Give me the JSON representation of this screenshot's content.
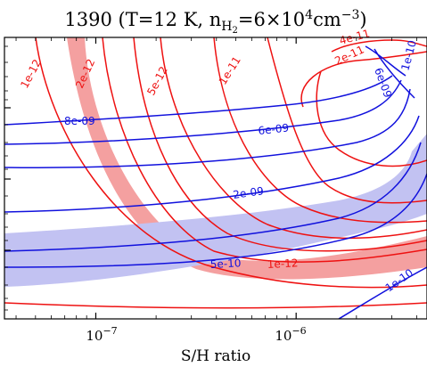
{
  "chart_data": {
    "type": "contour",
    "title": {
      "prefix": "1390 (T=12 K, n",
      "sub": "H",
      "subsub": "2",
      "mid": "=6×10",
      "sup1": "4",
      "unit": "cm",
      "sup2": "−3",
      "suffix": ")"
    },
    "xlabel": "S/H ratio",
    "ylabel": "",
    "x_scale": "log",
    "xlim": [
      3.5e-08,
      4.5e-06
    ],
    "x_ticks": [
      {
        "value": 1e-07,
        "base": "10",
        "exp": "−7"
      },
      {
        "value": 1e-06,
        "base": "10",
        "exp": "−6"
      }
    ],
    "colors": {
      "red": "#ee1111",
      "blue": "#1111dd",
      "red_band": "#f4a0a0",
      "blue_band": "#c2c2f2"
    },
    "series": [
      {
        "name": "red",
        "levels": [
          "1e-12",
          "2e-12",
          "5e-12",
          "1e-11",
          "2e-11",
          "4e-11",
          "1e-12"
        ]
      },
      {
        "name": "blue",
        "levels": [
          "8e-09",
          "6e-09",
          "2e-09",
          "5e-10",
          "1e-10",
          "6e-09",
          "1e-10"
        ]
      }
    ]
  }
}
